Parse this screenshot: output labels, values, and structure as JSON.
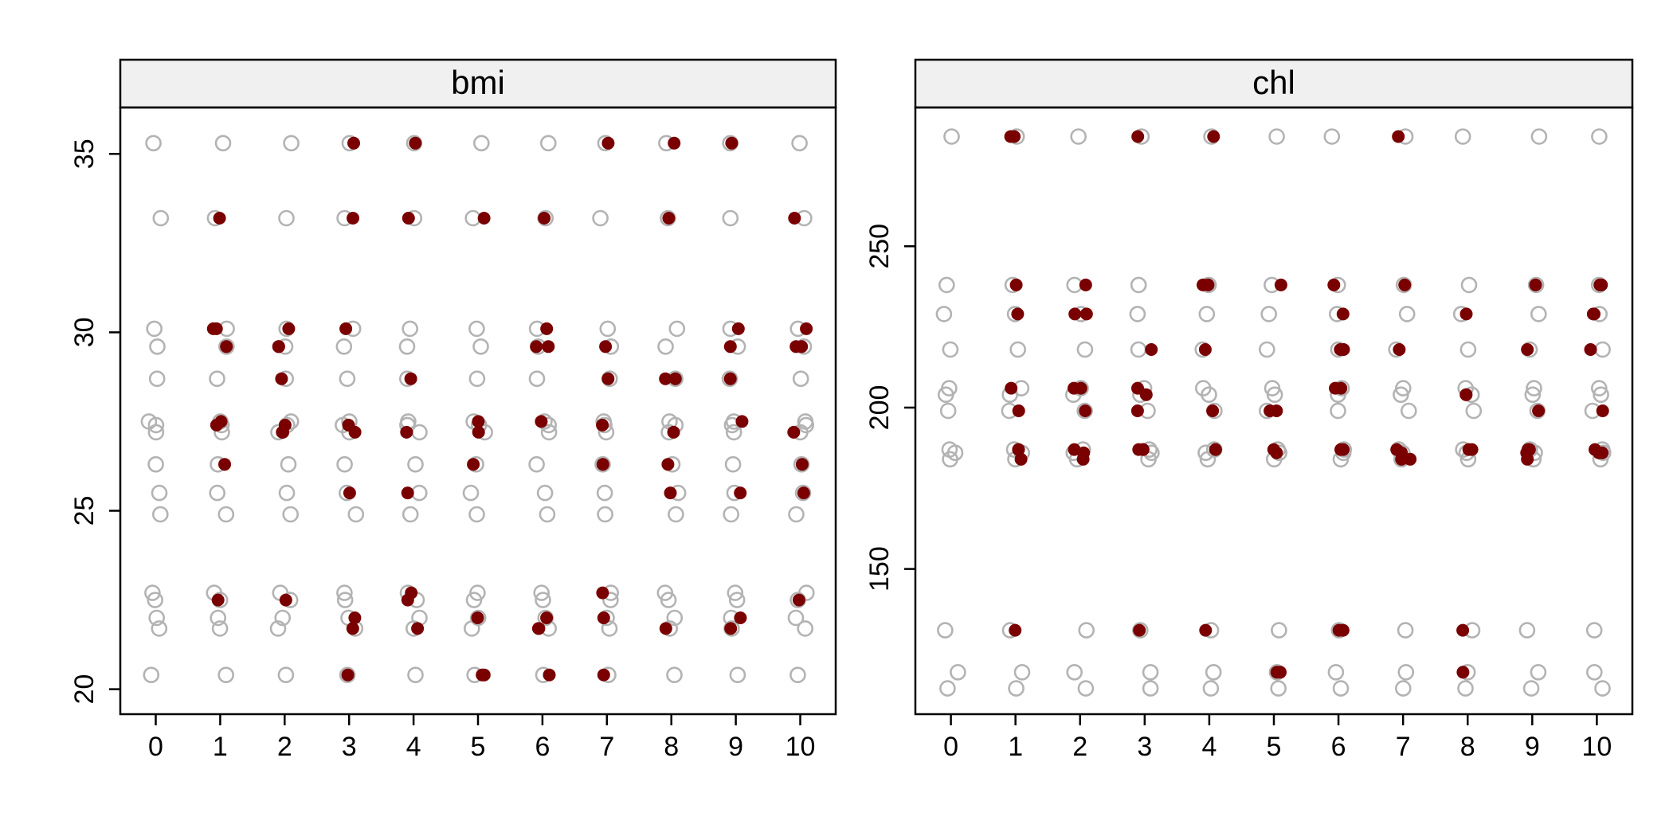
{
  "chart_data": [
    {
      "type": "scatter",
      "title": "bmi",
      "xlabel": "",
      "ylabel": "",
      "x_ticks": [
        0,
        1,
        2,
        3,
        4,
        5,
        6,
        7,
        8,
        9,
        10
      ],
      "y_ticks": [
        20,
        25,
        30,
        35
      ],
      "xlim": [
        -0.55,
        10.55
      ],
      "ylim": [
        19.3,
        36.3
      ],
      "grid": false,
      "colors": {
        "observed": "#b3b3b3",
        "imputed": "#7a0000"
      },
      "observed_values": [
        20.4,
        21.7,
        22.0,
        22.5,
        22.7,
        24.9,
        25.5,
        26.3,
        27.2,
        27.4,
        27.5,
        28.7,
        29.6,
        30.1,
        33.2,
        35.3
      ],
      "imputed": [
        {
          "x": 1,
          "values": [
            33.2,
            30.1,
            30.1,
            29.6,
            27.5,
            27.4,
            26.3,
            22.5
          ]
        },
        {
          "x": 2,
          "values": [
            30.1,
            29.6,
            29.6,
            28.7,
            27.4,
            27.2,
            27.2,
            22.5
          ]
        },
        {
          "x": 3,
          "values": [
            35.3,
            33.2,
            30.1,
            27.4,
            27.2,
            25.5,
            22.0,
            21.7,
            20.4
          ]
        },
        {
          "x": 4,
          "values": [
            35.3,
            33.2,
            28.7,
            27.2,
            25.5,
            22.5,
            22.7,
            21.7
          ]
        },
        {
          "x": 5,
          "values": [
            33.2,
            27.5,
            27.2,
            26.3,
            22.0,
            20.4,
            20.4
          ]
        },
        {
          "x": 6,
          "values": [
            33.2,
            30.1,
            29.6,
            29.6,
            27.5,
            22.0,
            21.7,
            21.7,
            20.4
          ]
        },
        {
          "x": 7,
          "values": [
            35.3,
            29.6,
            28.7,
            27.4,
            26.3,
            22.7,
            22.0,
            20.4
          ]
        },
        {
          "x": 8,
          "values": [
            35.3,
            33.2,
            28.7,
            28.7,
            27.2,
            26.3,
            25.5,
            21.7
          ]
        },
        {
          "x": 9,
          "values": [
            35.3,
            30.1,
            29.6,
            28.7,
            27.5,
            25.5,
            22.0,
            21.7
          ]
        },
        {
          "x": 10,
          "values": [
            33.2,
            30.1,
            29.6,
            29.6,
            27.2,
            26.3,
            25.5,
            22.5
          ]
        }
      ]
    },
    {
      "type": "scatter",
      "title": "chl",
      "xlabel": "",
      "ylabel": "",
      "x_ticks": [
        0,
        1,
        2,
        3,
        4,
        5,
        6,
        7,
        8,
        9,
        10
      ],
      "y_ticks": [
        150,
        200,
        250
      ],
      "xlim": [
        -0.55,
        10.55
      ],
      "ylim": [
        105,
        293
      ],
      "grid": false,
      "colors": {
        "observed": "#b3b3b3",
        "imputed": "#7a0000"
      },
      "observed_values": [
        113,
        118,
        131,
        184,
        186,
        187,
        199,
        204,
        206,
        218,
        229,
        238,
        284
      ],
      "imputed": [
        {
          "x": 1,
          "values": [
            284,
            284,
            238,
            229,
            206,
            199,
            187,
            187,
            184,
            131
          ]
        },
        {
          "x": 2,
          "values": [
            238,
            229,
            229,
            206,
            206,
            199,
            187,
            186,
            184
          ]
        },
        {
          "x": 3,
          "values": [
            284,
            218,
            206,
            204,
            199,
            187,
            187,
            187,
            131
          ]
        },
        {
          "x": 4,
          "values": [
            284,
            238,
            238,
            218,
            199,
            187,
            187,
            131
          ]
        },
        {
          "x": 5,
          "values": [
            238,
            199,
            199,
            187,
            186,
            118,
            118
          ]
        },
        {
          "x": 6,
          "values": [
            238,
            229,
            218,
            218,
            206,
            206,
            187,
            187,
            131,
            131
          ]
        },
        {
          "x": 7,
          "values": [
            284,
            238,
            218,
            187,
            186,
            184,
            184
          ]
        },
        {
          "x": 8,
          "values": [
            229,
            204,
            204,
            187,
            187,
            131,
            118
          ]
        },
        {
          "x": 9,
          "values": [
            238,
            218,
            199,
            187,
            187,
            186,
            184
          ]
        },
        {
          "x": 10,
          "values": [
            238,
            238,
            229,
            229,
            218,
            199,
            187,
            186,
            186
          ]
        }
      ]
    }
  ]
}
